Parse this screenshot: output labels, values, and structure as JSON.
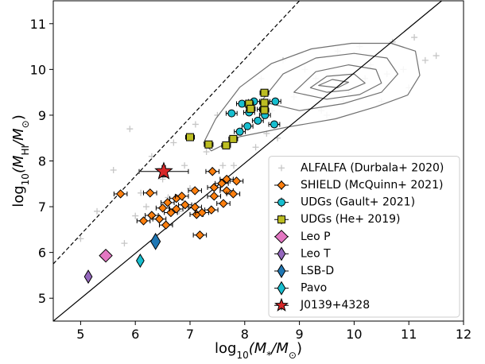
{
  "chart_data": {
    "type": "scatter",
    "xlabel": [
      {
        "t": "log"
      },
      {
        "t": "10",
        "sub": true
      },
      {
        "t": "(M"
      },
      {
        "t": "*",
        "sub": true
      },
      {
        "t": "/M"
      },
      {
        "t": "⊙",
        "sub": true
      },
      {
        "t": ")"
      }
    ],
    "ylabel": [
      {
        "t": "log"
      },
      {
        "t": "10",
        "sub": true
      },
      {
        "t": "(M"
      },
      {
        "t": "HI",
        "sub": true
      },
      {
        "t": "/M"
      },
      {
        "t": "⊙",
        "sub": true
      },
      {
        "t": ")"
      }
    ],
    "xlim": [
      4.5,
      12
    ],
    "ylim": [
      4.5,
      11.5
    ],
    "xticks": [
      5,
      6,
      7,
      8,
      9,
      10,
      11,
      12
    ],
    "yticks": [
      5,
      6,
      7,
      8,
      9,
      10,
      11
    ],
    "legend": "lower right",
    "lines": [
      {
        "x": [
          4.5,
          9.0
        ],
        "y": [
          5.75,
          11.5
        ],
        "style": "dashed"
      },
      {
        "x": [
          4.5,
          11.6
        ],
        "y": [
          4.5,
          11.5
        ],
        "style": "solid"
      }
    ],
    "contours": [
      {
        "x": [
          7.25,
          7.47,
          7.91,
          8.49,
          9.22,
          9.95,
          10.68,
          11.12,
          11.2,
          10.98,
          10.39,
          9.66,
          8.78,
          7.91,
          7.39
        ],
        "y": [
          8.4,
          8.92,
          9.61,
          10.13,
          10.45,
          10.57,
          10.57,
          10.4,
          9.87,
          9.44,
          9.18,
          8.92,
          8.74,
          8.53,
          8.22
        ]
      },
      {
        "x": [
          8.3,
          8.7,
          9.3,
          10.0,
          10.6,
          10.8,
          10.5,
          9.8,
          9.0
        ],
        "y": [
          9.3,
          9.9,
          10.25,
          10.35,
          10.25,
          9.9,
          9.5,
          9.25,
          9.1
        ]
      },
      {
        "x": [
          8.9,
          9.3,
          9.9,
          10.4,
          10.5,
          10.1,
          9.5
        ],
        "y": [
          9.5,
          9.95,
          10.1,
          10.0,
          9.7,
          9.45,
          9.35
        ]
      },
      {
        "x": [
          9.2,
          9.5,
          10.0,
          10.2,
          9.9,
          9.5
        ],
        "y": [
          9.6,
          9.85,
          9.9,
          9.7,
          9.55,
          9.5
        ]
      },
      {
        "x": [
          9.35,
          9.6,
          9.9,
          9.7
        ],
        "y": [
          9.65,
          9.78,
          9.72,
          9.6
        ]
      }
    ],
    "series": [
      {
        "name": "ALFALFA (Durbala+ 2020)",
        "marker": "plus",
        "color": "#808080",
        "size": 4,
        "x": [
          5.0,
          5.3,
          5.6,
          5.9,
          6.1,
          6.3,
          6.5,
          6.7,
          6.9,
          7.1,
          7.3,
          7.5,
          7.7,
          7.9,
          8.1,
          8.3,
          8.5,
          8.7,
          8.9,
          9.1,
          9.3,
          9.5,
          9.7,
          9.9,
          10.1,
          10.3,
          10.5,
          10.7,
          10.9,
          11.1,
          11.3,
          5.8,
          6.2,
          6.6,
          7.0,
          7.4,
          7.8,
          8.2,
          8.6,
          9.0,
          9.4,
          9.8,
          10.2,
          10.6,
          11.0,
          6.0,
          6.8,
          7.6,
          8.4,
          11.5
        ],
        "y": [
          6.3,
          6.9,
          7.8,
          8.7,
          7.3,
          8.1,
          7.6,
          8.4,
          7.9,
          8.8,
          8.2,
          9.0,
          8.5,
          9.3,
          8.7,
          9.8,
          9.1,
          10.2,
          9.4,
          10.0,
          9.8,
          9.0,
          10.4,
          9.5,
          10.5,
          10.1,
          9.3,
          10.6,
          10.0,
          10.7,
          10.2,
          6.2,
          7.0,
          7.2,
          7.4,
          7.8,
          7.9,
          8.3,
          8.5,
          8.9,
          9.1,
          9.3,
          9.8,
          9.9,
          9.6,
          6.8,
          6.9,
          7.9,
          8.6,
          10.3
        ]
      },
      {
        "name": "SHIELD (McQuinn+ 2021)",
        "marker": "D",
        "color": "#ff7f0e",
        "size": 5,
        "xerr": 0.12,
        "x": [
          5.73,
          6.27,
          6.3,
          6.15,
          6.44,
          6.5,
          6.59,
          6.65,
          6.56,
          6.75,
          6.75,
          6.85,
          6.91,
          7.09,
          7.09,
          7.12,
          7.18,
          7.41,
          7.44,
          7.44,
          7.39,
          7.58,
          7.67,
          7.67,
          7.79,
          7.85,
          7.61,
          7.22
        ],
        "y": [
          7.28,
          7.3,
          6.81,
          6.69,
          6.73,
          6.97,
          7.09,
          6.87,
          6.6,
          7.18,
          6.95,
          7.23,
          7.04,
          7.35,
          6.99,
          6.83,
          6.38,
          7.77,
          7.42,
          7.23,
          6.93,
          7.51,
          7.6,
          7.35,
          7.28,
          7.56,
          7.07,
          6.87
        ]
      },
      {
        "name": "UDGs (Gault+ 2021)",
        "marker": "o",
        "color": "#17becf",
        "size": 4.5,
        "xerr": 0.1,
        "x": [
          7.76,
          7.95,
          8.05,
          8.08,
          8.17,
          8.24,
          8.33,
          8.37,
          8.56,
          8.54,
          7.91
        ],
        "y": [
          9.04,
          9.25,
          8.76,
          9.06,
          9.3,
          8.88,
          9.13,
          9.0,
          9.3,
          8.8,
          8.64
        ]
      },
      {
        "name": "UDGs (He+ 2019)",
        "marker": "s",
        "color": "#bcbd22",
        "size": 4.5,
        "xerr": 0.08,
        "x": [
          7.0,
          7.34,
          7.66,
          7.79,
          8.08,
          8.11,
          8.36,
          8.36,
          8.36
        ],
        "y": [
          8.52,
          8.36,
          8.34,
          8.48,
          9.25,
          9.14,
          9.49,
          9.27,
          9.11
        ]
      },
      {
        "name": "Leo P",
        "marker": "D",
        "color": "#e377c2",
        "size": 8,
        "x": [
          5.46
        ],
        "y": [
          5.93
        ]
      },
      {
        "name": "Leo T",
        "marker": "d",
        "color": "#9467bd",
        "size": 8,
        "x": [
          5.14
        ],
        "y": [
          5.47
        ]
      },
      {
        "name": "LSB-D",
        "marker": "d",
        "color": "#1f77b4",
        "size": 10,
        "x": [
          6.37
        ],
        "y": [
          6.24
        ]
      },
      {
        "name": "Pavo",
        "marker": "d",
        "color": "#17becf",
        "size": 8,
        "xerr": 0.05,
        "x": [
          6.09
        ],
        "y": [
          5.82
        ]
      },
      {
        "name": "J0139+4328",
        "marker": "*",
        "color": "#d62728",
        "size": 11,
        "xerr": 0.45,
        "yerr": 0.12,
        "x": [
          6.52
        ],
        "y": [
          7.77
        ]
      }
    ]
  }
}
